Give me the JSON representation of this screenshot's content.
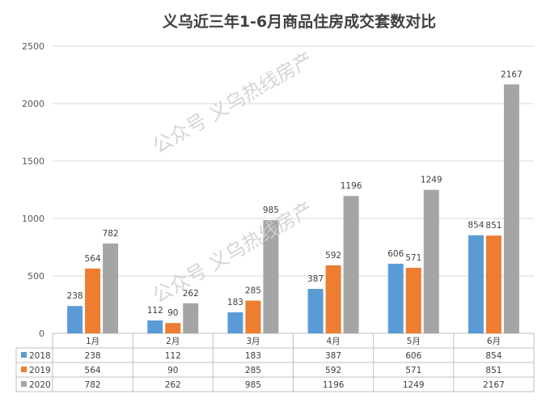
{
  "chart_data": {
    "type": "bar",
    "title": "义乌近三年1-6月商品住房成交套数对比",
    "categories": [
      "1月",
      "2月",
      "3月",
      "4月",
      "5月",
      "6月"
    ],
    "series": [
      {
        "name": "2018",
        "color": "#5b9bd5",
        "values": [
          238,
          112,
          183,
          387,
          606,
          854
        ]
      },
      {
        "name": "2019",
        "color": "#ed7d31",
        "values": [
          564,
          90,
          285,
          592,
          571,
          851
        ]
      },
      {
        "name": "2020",
        "color": "#a5a5a5",
        "values": [
          782,
          262,
          985,
          1196,
          1249,
          2167
        ]
      }
    ],
    "ylim": [
      0,
      2500
    ],
    "yticks": [
      0,
      500,
      1000,
      1500,
      2000,
      2500
    ],
    "grid": true,
    "data_table": true
  },
  "watermark": "公众号 义乌热线房产"
}
